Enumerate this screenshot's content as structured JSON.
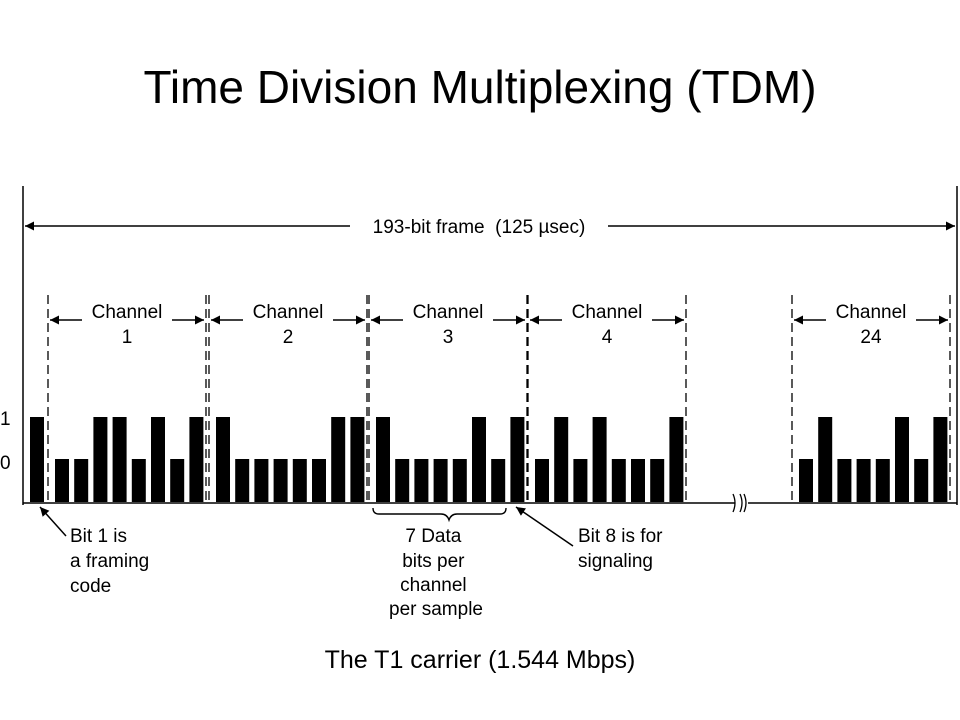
{
  "title": "Time Division Multiplexing (TDM)",
  "caption": "The T1 carrier (1.544 Mbps)",
  "frame_label": "193-bit frame  (125 µsec)",
  "level_labels": {
    "high": "1",
    "low": "0"
  },
  "channels": [
    {
      "label": "Channel",
      "number": "1",
      "bits": [
        0,
        0,
        1,
        1,
        0,
        1,
        0,
        1
      ]
    },
    {
      "label": "Channel",
      "number": "2",
      "bits": [
        1,
        0,
        0,
        0,
        0,
        0,
        1,
        1
      ]
    },
    {
      "label": "Channel",
      "number": "3",
      "bits": [
        1,
        0,
        0,
        0,
        0,
        1,
        0,
        1
      ]
    },
    {
      "label": "Channel",
      "number": "4",
      "bits": [
        0,
        1,
        0,
        1,
        0,
        0,
        0,
        1
      ]
    },
    {
      "label": "Channel",
      "number": "24",
      "bits": [
        0,
        1,
        0,
        0,
        0,
        1,
        0,
        1
      ]
    }
  ],
  "framing_bit": 1,
  "annotations": {
    "framing": [
      "Bit 1 is",
      "a framing",
      "code"
    ],
    "data": [
      "7 Data",
      "bits per",
      "channel",
      "per sample"
    ],
    "signaling": [
      "Bit 8 is for",
      "signaling"
    ]
  }
}
